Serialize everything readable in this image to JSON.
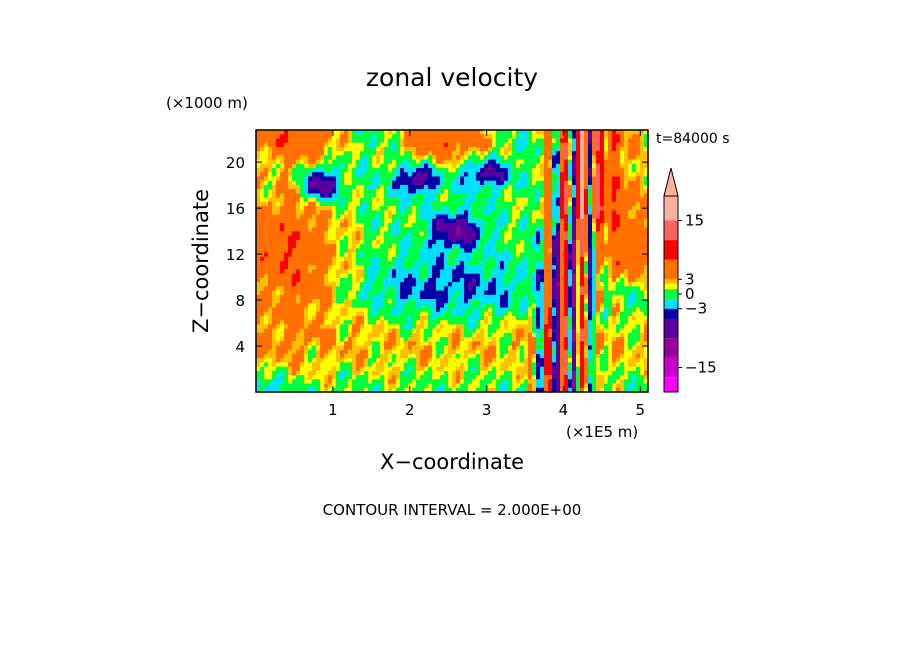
{
  "chart_data": {
    "type": "heatmap",
    "title": "zonal velocity",
    "time_label": "t=84000 s",
    "xlabel": "X−coordinate",
    "ylabel": "Z−coordinate",
    "x_scale_label": "(×1E5 m)",
    "y_scale_label": "(×1000 m)",
    "footer": "CONTOUR INTERVAL = 2.000E+00",
    "xlim": [
      0,
      5.1
    ],
    "ylim": [
      0,
      22.8
    ],
    "x_ticks": [
      1,
      2,
      3,
      4,
      5
    ],
    "x_tick_labels": [
      "1",
      "2",
      "3",
      "4",
      "5"
    ],
    "y_ticks": [
      4,
      8,
      12,
      16,
      20
    ],
    "y_tick_labels": [
      "4",
      "8",
      "12",
      "16",
      "20"
    ],
    "contour_interval": 2.0,
    "colorbar": {
      "extend": "both",
      "tick_values": [
        15,
        3,
        0,
        -3,
        -15
      ],
      "tick_labels": [
        "15",
        "3",
        "0",
        "−3",
        "−15"
      ],
      "bands": [
        {
          "lo": -20,
          "hi": -17,
          "color": "#ff00ff"
        },
        {
          "lo": -17,
          "hi": -13,
          "color": "#cc00cc"
        },
        {
          "lo": -13,
          "hi": -9,
          "color": "#990099"
        },
        {
          "lo": -9,
          "hi": -5,
          "color": "#5a00a0"
        },
        {
          "lo": -5,
          "hi": -3,
          "color": "#0000a8"
        },
        {
          "lo": -3,
          "hi": -1,
          "color": "#00e0ff"
        },
        {
          "lo": -1,
          "hi": 1,
          "color": "#00ff40"
        },
        {
          "lo": 1,
          "hi": 2,
          "color": "#ffff00"
        },
        {
          "lo": 2,
          "hi": 3,
          "color": "#ffc000"
        },
        {
          "lo": 3,
          "hi": 7,
          "color": "#ff7000"
        },
        {
          "lo": 7,
          "hi": 11,
          "color": "#ff0000"
        },
        {
          "lo": 11,
          "hi": 15,
          "color": "#ff6060"
        },
        {
          "lo": 15,
          "hi": 20,
          "color": "#ffb0a0"
        }
      ]
    }
  }
}
